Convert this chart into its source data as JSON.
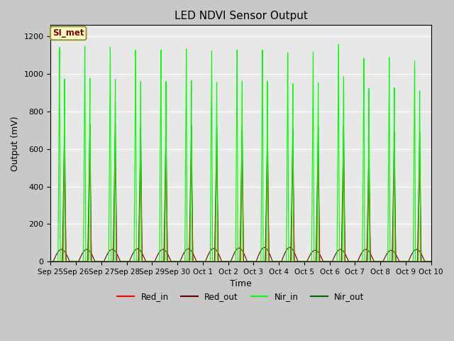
{
  "title": "LED NDVI Sensor Output",
  "xlabel": "Time",
  "ylabel": "Output (mV)",
  "fig_facecolor": "#c8c8c8",
  "ax_facecolor": "#e8e8e8",
  "annotation_text": "SI_met",
  "annotation_bg": "#ffffcc",
  "annotation_border": "#999933",
  "legend_colors": [
    "#ff0000",
    "#660000",
    "#00ff00",
    "#006600"
  ],
  "legend_labels": [
    "Red_in",
    "Red_out",
    "Nir_in",
    "Nir_out"
  ],
  "ylim": [
    0,
    1260
  ],
  "num_cycles": 15,
  "tick_labels": [
    "Sep 25",
    "Sep 26",
    "Sep 27",
    "Sep 28",
    "Sep 29",
    "Sep 30",
    "Oct 1",
    "Oct 2",
    "Oct 3",
    "Oct 4",
    "Oct 5",
    "Oct 6",
    "Oct 7",
    "Oct 8",
    "Oct 9",
    "Oct 10"
  ],
  "red_in_peaks": [
    530,
    540,
    550,
    525,
    550,
    545,
    560,
    555,
    565,
    560,
    515,
    520,
    435,
    510,
    500
  ],
  "red_out_peaks": [
    65,
    65,
    65,
    68,
    65,
    68,
    70,
    72,
    75,
    75,
    60,
    65,
    65,
    60,
    65
  ],
  "nir_in_peaks": [
    1155,
    1160,
    1155,
    1140,
    1140,
    1145,
    1135,
    1140,
    1140,
    1125,
    1130,
    1170,
    1095,
    1100,
    1080
  ],
  "nir_out_peaks": [
    740,
    735,
    740,
    725,
    730,
    730,
    728,
    730,
    715,
    705,
    720,
    730,
    625,
    695,
    690
  ],
  "grid_color": "#ffffff",
  "yticks": [
    0,
    200,
    400,
    600,
    800,
    1000,
    1200
  ]
}
